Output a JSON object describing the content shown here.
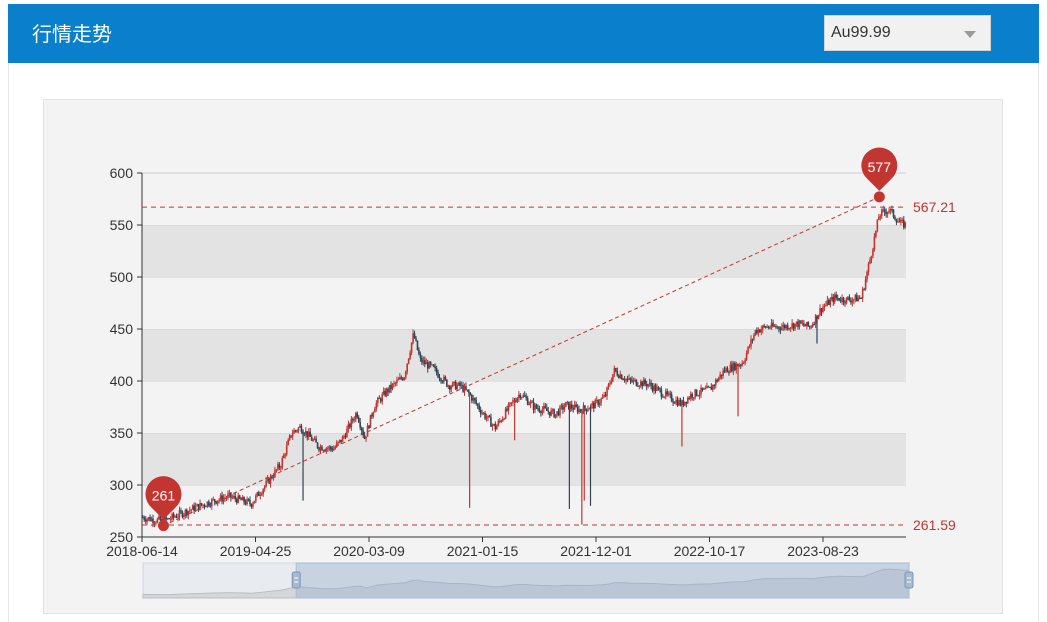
{
  "header": {
    "title": "行情走势"
  },
  "selector": {
    "value": "Au99.99"
  },
  "colors": {
    "up": "#c23531",
    "down": "#2f4554",
    "accent": "#0a7fcc",
    "marker": "#c23531"
  },
  "chart_data": {
    "type": "candlestick",
    "title": "",
    "xlabel": "",
    "ylabel": "",
    "ylim": [
      250,
      600
    ],
    "y_ticks": [
      250,
      300,
      350,
      400,
      450,
      500,
      550,
      600
    ],
    "x_tick_labels": [
      "2018-06-14",
      "2019-04-25",
      "2020-03-09",
      "2021-01-15",
      "2021-12-01",
      "2022-10-17",
      "2023-08-23"
    ],
    "x_range": [
      "2018-06-14",
      "2024-06-28"
    ],
    "grid": true,
    "grid_style": "alternating horizontal bands",
    "series": [
      {
        "name": "",
        "points": [
          [
            "2018-06-14",
            269
          ],
          [
            "2018-08-15",
            265
          ],
          [
            "2018-10-01",
            272
          ],
          [
            "2018-12-20",
            283
          ],
          [
            "2019-02-20",
            289
          ],
          [
            "2019-04-25",
            282
          ],
          [
            "2019-06-10",
            302
          ],
          [
            "2019-07-20",
            320
          ],
          [
            "2019-08-20",
            350
          ],
          [
            "2019-09-15",
            356
          ],
          [
            "2019-11-05",
            337
          ],
          [
            "2019-12-20",
            335
          ],
          [
            "2020-01-15",
            345
          ],
          [
            "2020-02-24",
            370
          ],
          [
            "2020-03-18",
            345
          ],
          [
            "2020-04-15",
            376
          ],
          [
            "2020-05-20",
            390
          ],
          [
            "2020-07-10",
            405
          ],
          [
            "2020-08-06",
            445
          ],
          [
            "2020-08-25",
            420
          ],
          [
            "2020-10-01",
            412
          ],
          [
            "2020-11-15",
            396
          ],
          [
            "2020-12-20",
            395
          ],
          [
            "2021-01-15",
            387
          ],
          [
            "2021-02-20",
            370
          ],
          [
            "2021-03-30",
            355
          ],
          [
            "2021-05-20",
            380
          ],
          [
            "2021-06-10",
            388
          ],
          [
            "2021-07-20",
            375
          ],
          [
            "2021-08-20",
            372
          ],
          [
            "2021-09-20",
            368
          ],
          [
            "2021-10-20",
            377
          ],
          [
            "2021-12-01",
            372
          ],
          [
            "2022-01-10",
            377
          ],
          [
            "2022-02-10",
            385
          ],
          [
            "2022-03-08",
            410
          ],
          [
            "2022-04-20",
            400
          ],
          [
            "2022-06-15",
            397
          ],
          [
            "2022-08-10",
            385
          ],
          [
            "2022-09-20",
            378
          ],
          [
            "2022-10-17",
            387
          ],
          [
            "2022-12-10",
            392
          ],
          [
            "2023-01-20",
            410
          ],
          [
            "2023-03-15",
            418
          ],
          [
            "2023-04-20",
            448
          ],
          [
            "2023-05-20",
            452
          ],
          [
            "2023-07-05",
            452
          ],
          [
            "2023-08-23",
            455
          ],
          [
            "2023-09-25",
            452
          ],
          [
            "2023-10-28",
            470
          ],
          [
            "2023-12-05",
            480
          ],
          [
            "2024-01-10",
            478
          ],
          [
            "2024-02-20",
            480
          ],
          [
            "2024-03-15",
            515
          ],
          [
            "2024-04-12",
            560
          ],
          [
            "2024-05-10",
            565
          ],
          [
            "2024-06-10",
            552
          ],
          [
            "2024-06-28",
            550
          ]
        ]
      }
    ],
    "spikes": [
      [
        "2019-09-22",
        285
      ],
      [
        "2021-01-15",
        278
      ],
      [
        "2021-05-25",
        343
      ],
      [
        "2021-10-30",
        277
      ],
      [
        "2021-12-05",
        262
      ],
      [
        "2021-12-12",
        285
      ],
      [
        "2021-12-30",
        280
      ],
      [
        "2022-09-20",
        337
      ],
      [
        "2023-03-01",
        366
      ],
      [
        "2023-10-15",
        436
      ]
    ],
    "markers": {
      "max": {
        "date": "2024-04-12",
        "value": 577,
        "label": "577"
      },
      "min": {
        "date": "2018-08-15",
        "value": 261,
        "label": "261"
      }
    },
    "mark_lines": [
      {
        "value": 567.21,
        "label": "567.21"
      },
      {
        "value": 261.59,
        "label": "261.59"
      }
    ],
    "data_zoom": {
      "start_fraction": 0.2,
      "end_fraction": 1.0
    }
  }
}
